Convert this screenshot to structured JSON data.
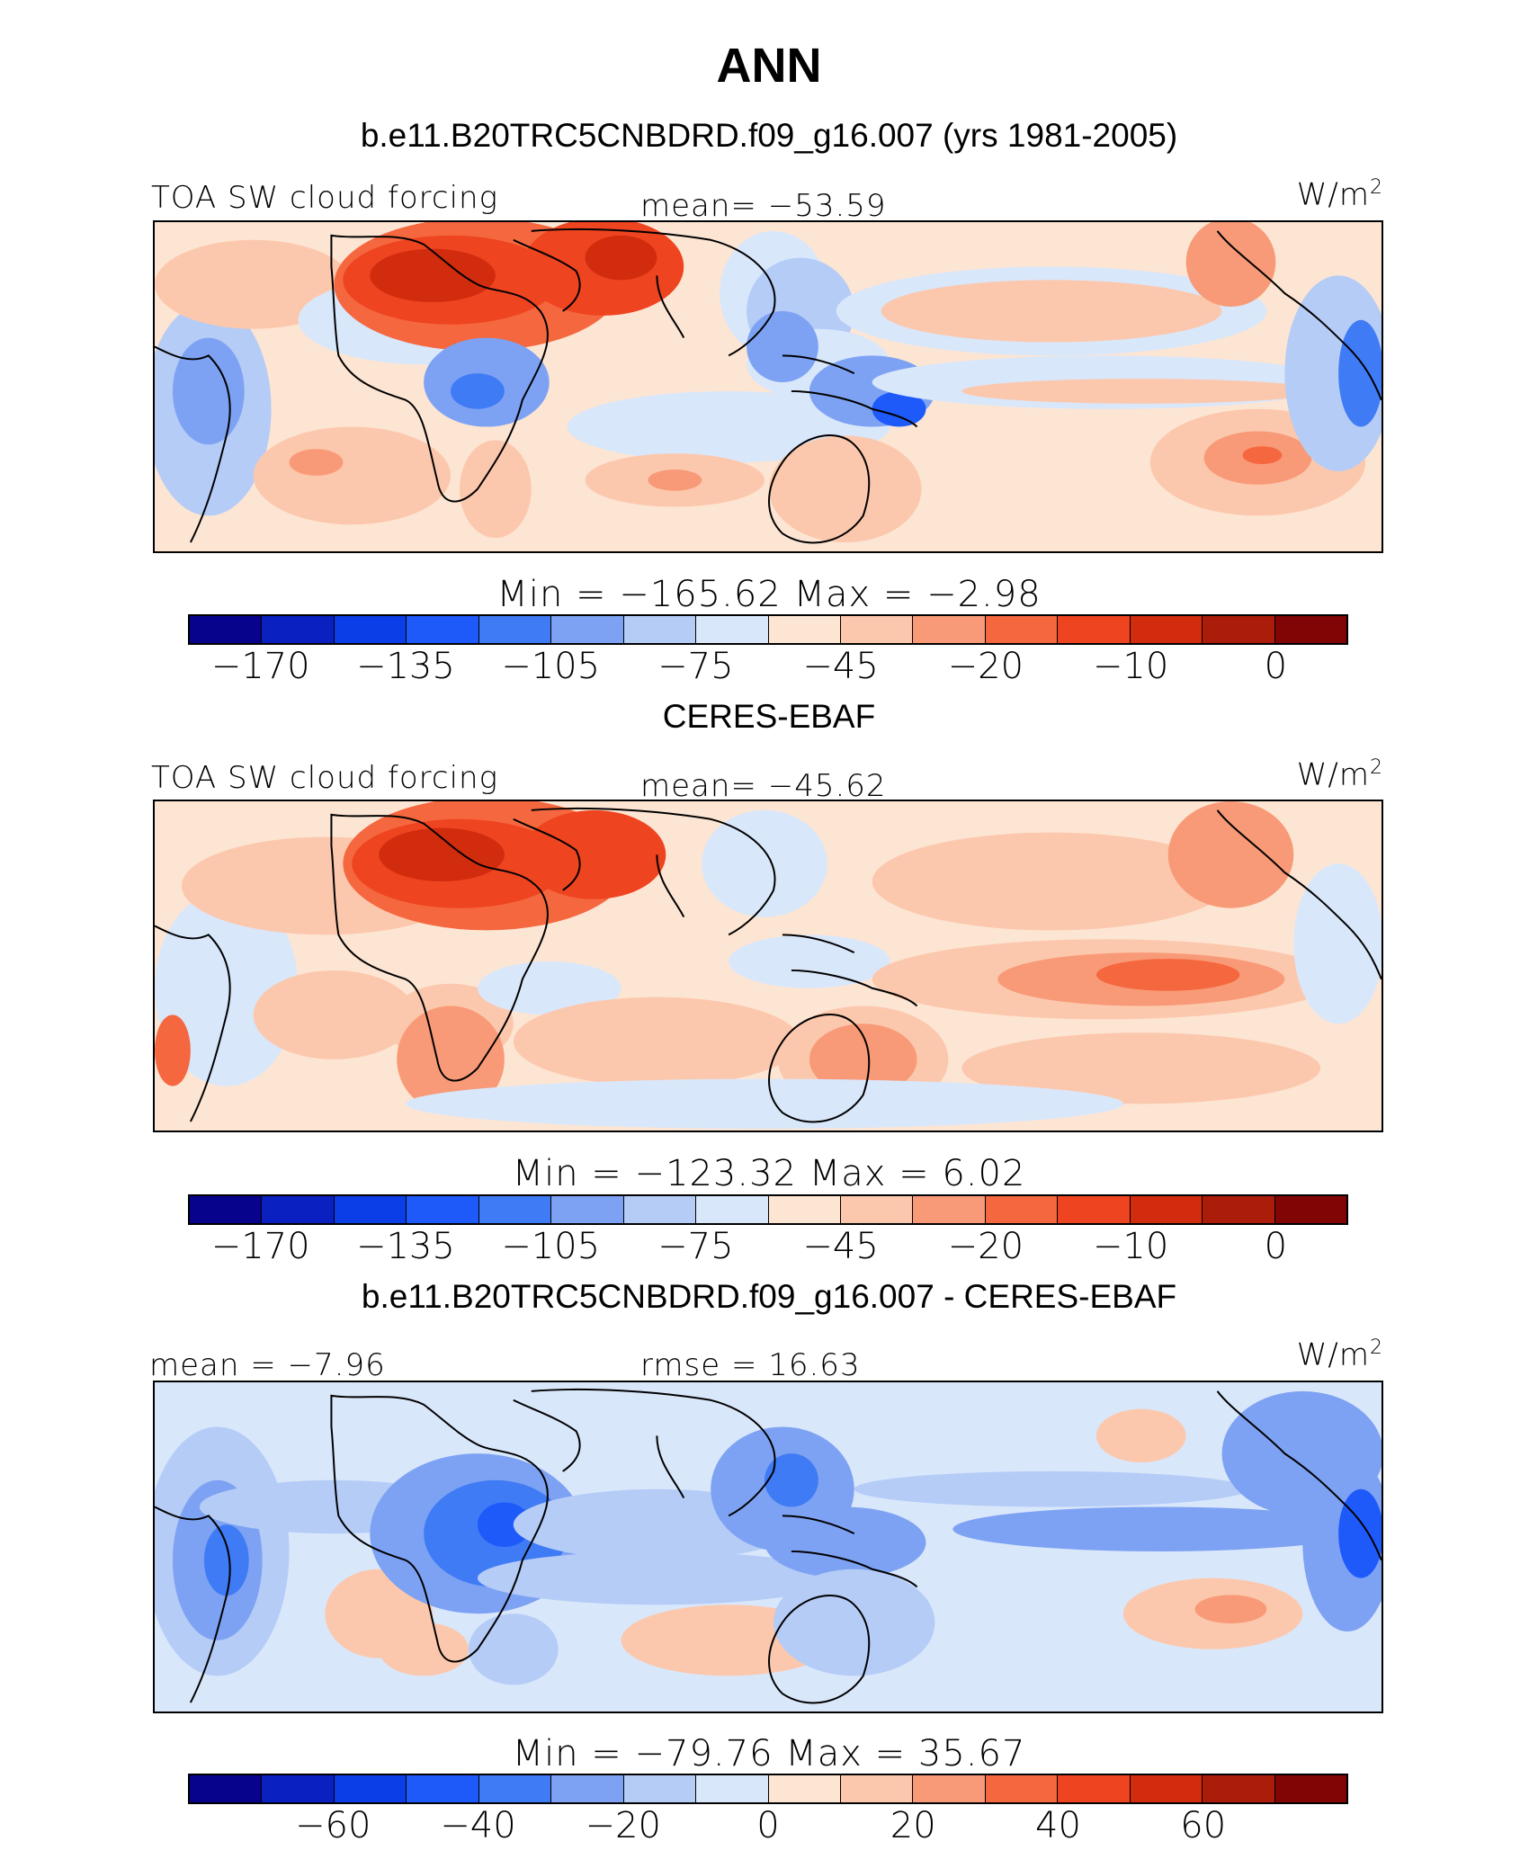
{
  "title": "ANN",
  "panels": [
    {
      "case_title": "b.e11.B20TRC5CNBDRD.f09_g16.007 (yrs 1981-2005)",
      "left_label": "TOA SW cloud forcing",
      "center_label": "mean= −53.59",
      "units": "W/m",
      "units_sup": "2",
      "minmax": "Min  =  −165.62  Max  =    −2.98",
      "ticks": [
        "−170",
        "−135",
        "−105",
        "−75",
        "−45",
        "−20",
        "−10",
        "0"
      ],
      "field": "model"
    },
    {
      "case_title": "CERES-EBAF",
      "left_label": "TOA SW cloud forcing",
      "center_label": "mean= −45.62",
      "units": "W/m",
      "units_sup": "2",
      "minmax": "Min  =  −123.32  Max  =      6.02",
      "ticks": [
        "−170",
        "−135",
        "−105",
        "−75",
        "−45",
        "−20",
        "−10",
        "0"
      ],
      "field": "obs"
    },
    {
      "case_title": "b.e11.B20TRC5CNBDRD.f09_g16.007 - CERES-EBAF",
      "left_label": "mean  =   −7.96",
      "center_label": "rmse  =   16.63",
      "units": "W/m",
      "units_sup": "2",
      "minmax": "Min  =  −79.76  Max  =    35.67",
      "ticks": [
        "−60",
        "−40",
        "−20",
        "0",
        "20",
        "40",
        "60"
      ],
      "field": "diff"
    }
  ],
  "colorbar_colors": [
    "#08038c",
    "#0a20c0",
    "#0b3ee6",
    "#1e5afa",
    "#3f7bf5",
    "#7ea2f3",
    "#b5ccf7",
    "#d9e7fb",
    "#fde5d3",
    "#fcc8ad",
    "#f89a77",
    "#f5673f",
    "#ee4420",
    "#d12c0e",
    "#ab1d0a",
    "#810504"
  ],
  "chart_data": {
    "type": "heatmap",
    "description_fields": [
      "model",
      "obs",
      "diff"
    ],
    "panels": [
      {
        "name": "model",
        "mean": -53.59,
        "min": -165.62,
        "max": -2.98,
        "levels": [
          -170,
          -155,
          -135,
          -120,
          -105,
          -90,
          -75,
          -60,
          -45,
          -30,
          -20,
          -15,
          -10,
          -5,
          0
        ]
      },
      {
        "name": "obs",
        "mean": -45.62,
        "min": -123.32,
        "max": 6.02,
        "levels": [
          -170,
          -155,
          -135,
          -120,
          -105,
          -90,
          -75,
          -60,
          -45,
          -30,
          -20,
          -15,
          -10,
          -5,
          0
        ]
      },
      {
        "name": "diff",
        "mean": -7.96,
        "rmse": 16.63,
        "min": -79.76,
        "max": 35.67,
        "levels": [
          -70,
          -60,
          -50,
          -40,
          -30,
          -20,
          -10,
          0,
          10,
          20,
          30,
          40,
          50,
          60,
          70
        ]
      }
    ]
  }
}
